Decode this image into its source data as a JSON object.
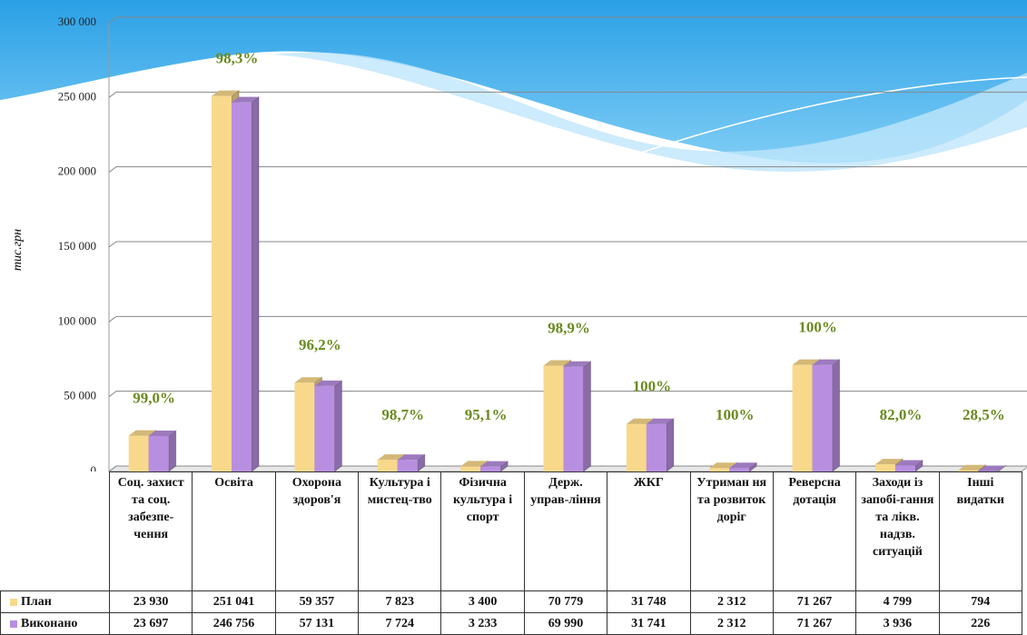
{
  "chart_data": {
    "type": "bar3d",
    "y_axis_label": "тис.грн",
    "categories": [
      "Соц. захист та соц. забезпе-чення",
      "Освіта",
      "Охорона здоров'я",
      "Культура і мистец-тво",
      "Фізична культура і спорт",
      "Держ. управ-ління",
      "ЖКГ",
      "Утриман ня та розвиток доріг",
      "Реверсна дотація",
      "Заходи із запобі-гання та лікв. надзв. ситуацій",
      "Інші видатки"
    ],
    "series": [
      {
        "name": "План",
        "color": "#f8d98c",
        "values": [
          23930,
          251041,
          59357,
          7823,
          3400,
          70779,
          31748,
          2312,
          71267,
          4799,
          794
        ],
        "value_labels": [
          "23 930",
          "251 041",
          "59 357",
          "7 823",
          "3 400",
          "70 779",
          "31 748",
          "2 312",
          "71 267",
          "4 799",
          "794"
        ]
      },
      {
        "name": "Виконано",
        "color": "#b88fe0",
        "values": [
          23697,
          246756,
          57131,
          7724,
          3233,
          69990,
          31741,
          2312,
          71267,
          3936,
          226
        ],
        "value_labels": [
          "23 697",
          "246 756",
          "57 131",
          "7 724",
          "3 233",
          "69 990",
          "31 741",
          "2 312",
          "71 267",
          "3 936",
          "226"
        ]
      }
    ],
    "annotations": [
      "99,0%",
      "98,3%",
      "96,2%",
      "98,7%",
      "95,1%",
      "98,9%",
      "100%",
      "100%",
      "100%",
      "82,0%",
      "28,5%"
    ],
    "ylim": [
      0,
      300000
    ],
    "yticks": [
      0,
      {
        "value": 50000,
        "label": "50 000"
      },
      {
        "value": 100000,
        "label": "100 000"
      },
      {
        "value": 150000,
        "label": "150 000"
      },
      {
        "value": 200000,
        "label": "200 000"
      },
      {
        "value": 250000,
        "label": "250 000"
      },
      {
        "value": 300000,
        "label": "300 000"
      }
    ],
    "grid": true
  }
}
